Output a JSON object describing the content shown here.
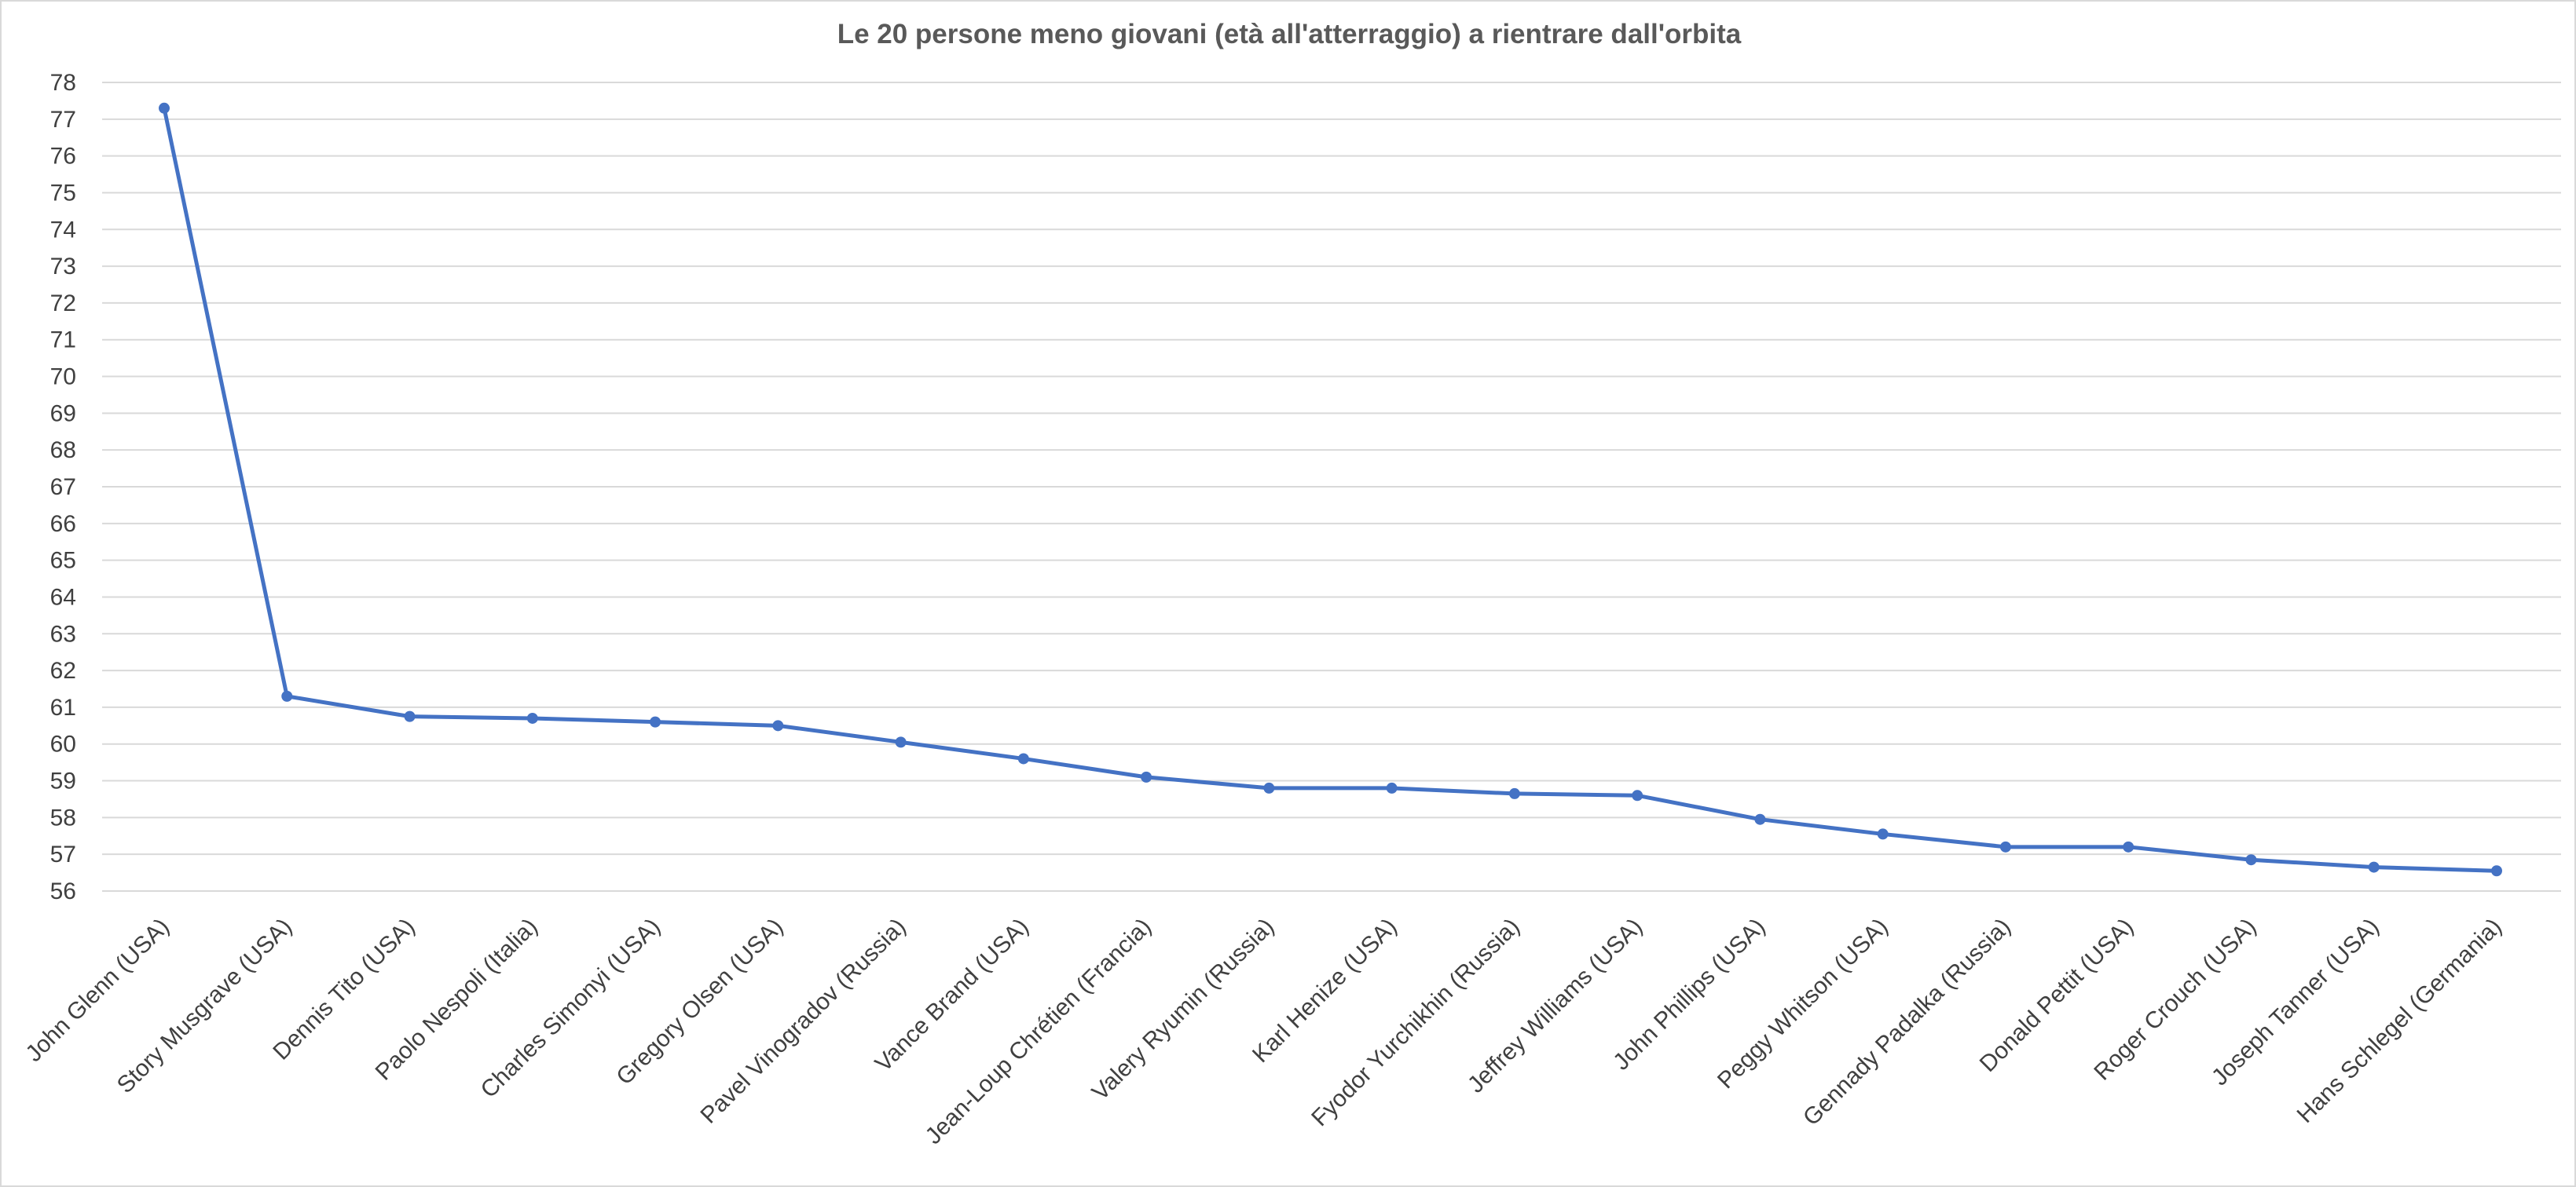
{
  "chart_data": {
    "type": "line",
    "title": "Le 20 persone meno giovani (età all'atterraggio) a rientrare dall'orbita",
    "xlabel": "",
    "ylabel": "",
    "ylim": [
      56,
      78
    ],
    "ytick_step": 1,
    "grid": true,
    "legend": "none",
    "categories": [
      "John Glenn (USA)",
      "Story Musgrave (USA)",
      "Dennis Tito (USA)",
      "Paolo Nespoli (Italia)",
      "Charles Simonyi (USA)",
      "Gregory Olsen (USA)",
      "Pavel Vinogradov (Russia)",
      "Vance Brand (USA)",
      "Jean-Loup Chrétien (Francia)",
      "Valery Ryumin (Russia)",
      "Karl Henize (USA)",
      "Fyodor Yurchikhin (Russia)",
      "Jeffrey Williams (USA)",
      "John Phillips (USA)",
      "Peggy Whitson (USA)",
      "Gennady Padalka (Russia)",
      "Donald Pettit (USA)",
      "Roger Crouch (USA)",
      "Joseph Tanner (USA)",
      "Hans Schlegel (Germania)"
    ],
    "series": [
      {
        "values": [
          77.3,
          61.3,
          60.75,
          60.7,
          60.6,
          60.5,
          60.05,
          59.6,
          59.1,
          58.8,
          58.8,
          58.65,
          58.6,
          57.95,
          57.55,
          57.2,
          57.2,
          56.85,
          56.65,
          56.55
        ],
        "color": "#4472c4"
      }
    ],
    "colors": {
      "series": "#4472c4",
      "grid": "#d9d9d9",
      "title": "#595959",
      "axis_text": "#404040",
      "frame": "#d9d9d9"
    }
  }
}
